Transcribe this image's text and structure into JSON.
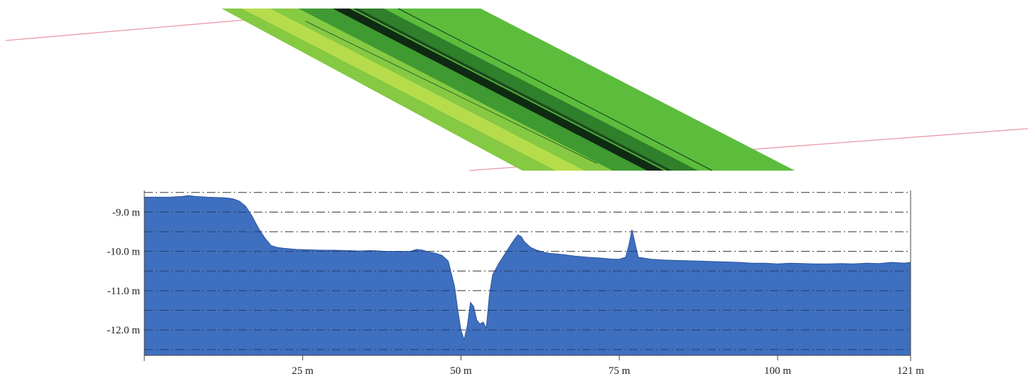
{
  "chart_data": {
    "type": "area",
    "title": "",
    "xlabel": "",
    "ylabel": "",
    "x_unit": "m",
    "y_unit": "m",
    "xlim": [
      0,
      121
    ],
    "ylim": [
      -12.65,
      -8.45
    ],
    "x_ticks": [
      {
        "value": 25,
        "label": "25 m"
      },
      {
        "value": 50,
        "label": "50 m"
      },
      {
        "value": 75,
        "label": "75 m"
      },
      {
        "value": 100,
        "label": "100 m"
      },
      {
        "value": 121,
        "label": "121 m"
      }
    ],
    "y_ticks": [
      {
        "value": -9.0,
        "label": "-9.0 m"
      },
      {
        "value": -10.0,
        "label": "-10.0 m"
      },
      {
        "value": -11.0,
        "label": "-11.0 m"
      },
      {
        "value": -12.0,
        "label": "-12.0 m"
      }
    ],
    "gridlines_y": [
      -8.5,
      -9.0,
      -9.5,
      -10.0,
      -10.5,
      -11.0,
      -11.5,
      -12.0,
      -12.5
    ],
    "grid": "horizontal dash-dot",
    "series": [
      {
        "color": "#3f6fbf",
        "x": [
          0,
          2,
          4,
          6,
          7,
          8,
          10,
          12,
          13,
          14,
          15,
          16,
          17,
          18,
          19,
          20,
          21,
          22,
          24,
          26,
          28,
          30,
          32,
          34,
          36,
          38,
          40,
          42,
          43,
          44,
          45,
          46,
          47,
          48,
          49,
          49.5,
          50,
          50.5,
          51,
          51.5,
          52,
          52.5,
          53,
          53.5,
          54,
          54.5,
          55,
          56,
          57,
          58,
          58.5,
          59,
          59.5,
          60,
          61,
          62,
          63,
          64,
          66,
          68,
          70,
          72,
          74,
          75,
          76,
          76.5,
          77,
          77.5,
          78,
          80,
          82,
          84,
          86,
          88,
          90,
          92,
          94,
          96,
          98,
          100,
          102,
          104,
          106,
          108,
          110,
          112,
          114,
          116,
          118,
          120,
          121
        ],
        "y": [
          -8.62,
          -8.62,
          -8.62,
          -8.6,
          -8.58,
          -8.6,
          -8.62,
          -8.63,
          -8.64,
          -8.66,
          -8.72,
          -8.85,
          -9.1,
          -9.4,
          -9.65,
          -9.85,
          -9.9,
          -9.92,
          -9.95,
          -9.96,
          -9.97,
          -9.97,
          -9.98,
          -9.99,
          -9.98,
          -10.0,
          -10.0,
          -10.0,
          -9.95,
          -9.97,
          -10.02,
          -10.05,
          -10.1,
          -10.25,
          -10.9,
          -11.5,
          -12.0,
          -12.25,
          -11.9,
          -11.3,
          -11.4,
          -11.75,
          -11.85,
          -11.8,
          -11.95,
          -11.1,
          -10.6,
          -10.3,
          -10.05,
          -9.8,
          -9.68,
          -9.58,
          -9.62,
          -9.75,
          -9.9,
          -9.97,
          -10.02,
          -10.05,
          -10.08,
          -10.12,
          -10.15,
          -10.17,
          -10.2,
          -10.2,
          -10.15,
          -9.85,
          -9.45,
          -9.8,
          -10.15,
          -10.2,
          -10.22,
          -10.23,
          -10.24,
          -10.25,
          -10.26,
          -10.27,
          -10.28,
          -10.3,
          -10.3,
          -10.32,
          -10.3,
          -10.31,
          -10.32,
          -10.32,
          -10.31,
          -10.32,
          -10.3,
          -10.31,
          -10.28,
          -10.3,
          -10.28
        ]
      }
    ]
  },
  "terrain_view": {
    "strip_colors": [
      "#4caf3a",
      "#7cc840",
      "#b4dc48",
      "#2f7a2a",
      "#0f2a12",
      "#5fbc3c"
    ],
    "line_color": "#e79aa6"
  }
}
